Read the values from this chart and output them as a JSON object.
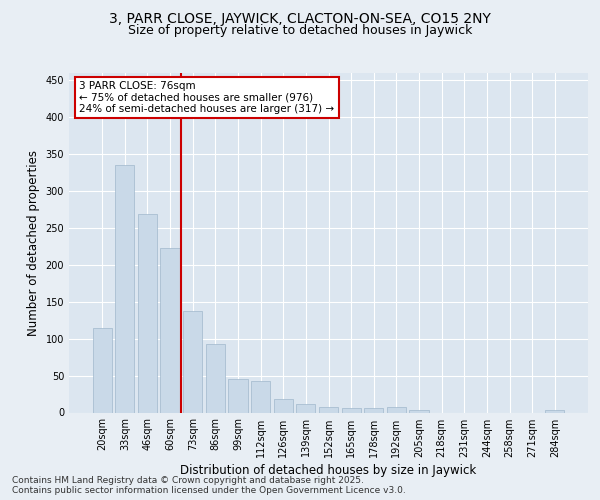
{
  "title1": "3, PARR CLOSE, JAYWICK, CLACTON-ON-SEA, CO15 2NY",
  "title2": "Size of property relative to detached houses in Jaywick",
  "xlabel": "Distribution of detached houses by size in Jaywick",
  "ylabel": "Number of detached properties",
  "categories": [
    "20sqm",
    "33sqm",
    "46sqm",
    "60sqm",
    "73sqm",
    "86sqm",
    "99sqm",
    "112sqm",
    "126sqm",
    "139sqm",
    "152sqm",
    "165sqm",
    "178sqm",
    "192sqm",
    "205sqm",
    "218sqm",
    "231sqm",
    "244sqm",
    "258sqm",
    "271sqm",
    "284sqm"
  ],
  "values": [
    115,
    335,
    268,
    222,
    138,
    93,
    46,
    42,
    18,
    11,
    7,
    6,
    6,
    7,
    3,
    0,
    0,
    0,
    0,
    0,
    4
  ],
  "bar_color": "#c9d9e8",
  "bar_edge_color": "#a0b8cc",
  "vline_index": 4,
  "vline_color": "#cc0000",
  "annotation_text": "3 PARR CLOSE: 76sqm\n← 75% of detached houses are smaller (976)\n24% of semi-detached houses are larger (317) →",
  "annotation_box_color": "#ffffff",
  "annotation_box_edge": "#cc0000",
  "ylim": [
    0,
    460
  ],
  "yticks": [
    0,
    50,
    100,
    150,
    200,
    250,
    300,
    350,
    400,
    450
  ],
  "bg_color": "#e8eef4",
  "plot_bg_color": "#dce6f0",
  "grid_color": "#ffffff",
  "footnote": "Contains HM Land Registry data © Crown copyright and database right 2025.\nContains public sector information licensed under the Open Government Licence v3.0.",
  "title1_fontsize": 10,
  "title2_fontsize": 9,
  "xlabel_fontsize": 8.5,
  "ylabel_fontsize": 8.5,
  "tick_fontsize": 7,
  "annotation_fontsize": 7.5,
  "footnote_fontsize": 6.5
}
